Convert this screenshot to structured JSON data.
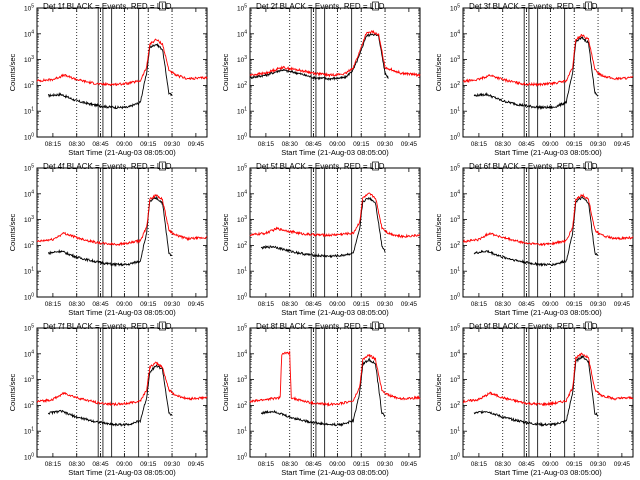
{
  "chart_data": {
    "type": "line",
    "layout": "3x3 grid",
    "shared": {
      "ylabel": "Counts/sec",
      "xlabel": "Start Time (21-Aug-03 08:05:00)",
      "x_tick_labels": [
        "08:15",
        "08:30",
        "08:45",
        "09:00",
        "09:15",
        "09:30",
        "09:45"
      ],
      "x_tick_minutes": [
        15,
        30,
        45,
        60,
        75,
        90,
        105
      ],
      "xlim_minutes": [
        5,
        112
      ],
      "y_scale": "log",
      "ylim": [
        1,
        100000
      ],
      "y_tick_labels": [
        "10^0",
        "10^1",
        "10^2",
        "10^3",
        "10^4",
        "10^5"
      ],
      "y_tick_exponents": [
        "0",
        "1",
        "2",
        "3",
        "4",
        "5"
      ],
      "dotted_vlines_minutes": [
        30,
        45,
        60,
        75,
        90
      ],
      "solid_vlines_minutes": [
        43.5,
        46.5,
        52,
        69
      ],
      "flag_box_minute": 84,
      "series_colors": {
        "Events": "#000000",
        "LLD": "#ff0000"
      }
    },
    "panels": [
      {
        "title": "Det 1f BLACK = Events, RED = LLD",
        "series": [
          {
            "name": "Events",
            "color": "#000000",
            "x": [
              12,
              20,
              30,
              40,
              48,
              55,
              62,
              70,
              74,
              76,
              80,
              84,
              88,
              90
            ],
            "y": [
              40,
              45,
              25,
              18,
              15,
              14,
              14,
              22,
              300,
              3000,
              4000,
              2500,
              50,
              40
            ]
          },
          {
            "name": "LLD",
            "color": "#ff0000",
            "x": [
              5,
              15,
              22,
              30,
              38,
              45,
              55,
              62,
              70,
              74,
              76,
              80,
              84,
              88,
              92,
              100,
              112
            ],
            "y": [
              150,
              170,
              250,
              170,
              130,
              110,
              110,
              120,
              150,
              500,
              4000,
              6000,
              4000,
              400,
              250,
              180,
              200
            ]
          }
        ]
      },
      {
        "title": "Det 2f BLACK = Events, RED = LLD",
        "series": [
          {
            "name": "Events",
            "color": "#000000",
            "x": [
              5,
              15,
              25,
              35,
              45,
              55,
              65,
              70,
              74,
              78,
              82,
              86,
              90,
              92
            ],
            "y": [
              200,
              250,
              400,
              300,
              200,
              180,
              200,
              400,
              1500,
              8000,
              10000,
              8000,
              300,
              200
            ]
          },
          {
            "name": "LLD",
            "color": "#ff0000",
            "x": [
              5,
              15,
              25,
              35,
              45,
              55,
              65,
              70,
              74,
              78,
              82,
              86,
              90,
              100,
              112
            ],
            "y": [
              250,
              300,
              500,
              400,
              300,
              250,
              280,
              500,
              2000,
              10000,
              12000,
              9000,
              500,
              300,
              250
            ]
          }
        ]
      },
      {
        "title": "Det 3f BLACK = Events, RED = LLD",
        "series": [
          {
            "name": "Events",
            "color": "#000000",
            "x": [
              12,
              20,
              30,
              40,
              48,
              55,
              62,
              70,
              74,
              76,
              80,
              84,
              88,
              90
            ],
            "y": [
              40,
              45,
              25,
              18,
              15,
              14,
              14,
              22,
              300,
              5000,
              7000,
              4500,
              50,
              40
            ]
          },
          {
            "name": "LLD",
            "color": "#ff0000",
            "x": [
              5,
              15,
              22,
              30,
              38,
              45,
              55,
              62,
              70,
              74,
              76,
              80,
              84,
              88,
              92,
              100,
              112
            ],
            "y": [
              140,
              170,
              250,
              170,
              130,
              110,
              110,
              120,
              150,
              500,
              6000,
              9000,
              6000,
              400,
              250,
              180,
              200
            ]
          }
        ]
      },
      {
        "title": "Det 4f BLACK = Events, RED = LLD",
        "series": [
          {
            "name": "Events",
            "color": "#000000",
            "x": [
              12,
              20,
              30,
              40,
              48,
              55,
              62,
              70,
              74,
              76,
              80,
              84,
              88,
              90
            ],
            "y": [
              50,
              60,
              35,
              25,
              20,
              18,
              18,
              25,
              300,
              5000,
              7000,
              4500,
              50,
              40
            ]
          },
          {
            "name": "LLD",
            "color": "#ff0000",
            "x": [
              5,
              15,
              22,
              30,
              38,
              45,
              55,
              62,
              70,
              74,
              76,
              80,
              84,
              88,
              92,
              100,
              112
            ],
            "y": [
              140,
              170,
              300,
              200,
              150,
              120,
              110,
              120,
              150,
              500,
              6000,
              9000,
              6000,
              400,
              250,
              180,
              200
            ]
          }
        ]
      },
      {
        "title": "Det 5f BLACK = Events, RED = LLD",
        "series": [
          {
            "name": "Events",
            "color": "#000000",
            "x": [
              12,
              20,
              30,
              40,
              48,
              55,
              62,
              70,
              74,
              76,
              80,
              84,
              88,
              90
            ],
            "y": [
              80,
              90,
              60,
              45,
              40,
              38,
              40,
              50,
              400,
              5000,
              7000,
              4500,
              100,
              60
            ]
          },
          {
            "name": "LLD",
            "color": "#ff0000",
            "x": [
              5,
              15,
              22,
              30,
              38,
              45,
              55,
              62,
              70,
              74,
              76,
              80,
              84,
              88,
              92,
              100,
              112
            ],
            "y": [
              250,
              300,
              450,
              350,
              280,
              260,
              250,
              270,
              300,
              800,
              7000,
              10000,
              7000,
              500,
              300,
              220,
              250
            ]
          }
        ]
      },
      {
        "title": "Det 6f BLACK = Events, RED = LLD",
        "series": [
          {
            "name": "Events",
            "color": "#000000",
            "x": [
              12,
              20,
              30,
              40,
              48,
              55,
              62,
              70,
              74,
              76,
              80,
              84,
              88,
              90
            ],
            "y": [
              50,
              60,
              35,
              25,
              20,
              18,
              18,
              25,
              300,
              5000,
              7000,
              4500,
              50,
              40
            ]
          },
          {
            "name": "LLD",
            "color": "#ff0000",
            "x": [
              5,
              15,
              22,
              30,
              38,
              45,
              55,
              62,
              70,
              74,
              76,
              80,
              84,
              88,
              92,
              100,
              112
            ],
            "y": [
              140,
              170,
              300,
              200,
              150,
              120,
              110,
              120,
              150,
              500,
              6000,
              9000,
              6000,
              400,
              250,
              180,
              200
            ]
          }
        ]
      },
      {
        "title": "Det 7f BLACK = Events, RED = LLD",
        "series": [
          {
            "name": "Events",
            "color": "#000000",
            "x": [
              12,
              20,
              30,
              40,
              48,
              55,
              62,
              70,
              74,
              76,
              80,
              84,
              88,
              90
            ],
            "y": [
              50,
              60,
              35,
              25,
              20,
              18,
              18,
              25,
              200,
              2000,
              3500,
              2500,
              50,
              40
            ]
          },
          {
            "name": "LLD",
            "color": "#ff0000",
            "x": [
              5,
              15,
              22,
              30,
              38,
              45,
              55,
              62,
              70,
              74,
              76,
              80,
              84,
              88,
              92,
              100,
              112
            ],
            "y": [
              140,
              170,
              300,
              200,
              150,
              120,
              110,
              120,
              150,
              400,
              3000,
              4500,
              3000,
              400,
              250,
              180,
              200
            ]
          }
        ]
      },
      {
        "title": "Det 8f BLACK = Events, RED = LLD",
        "series": [
          {
            "name": "Events",
            "color": "#000000",
            "x": [
              12,
              20,
              30,
              40,
              48,
              55,
              62,
              70,
              74,
              76,
              80,
              84,
              88,
              90
            ],
            "y": [
              50,
              60,
              35,
              25,
              20,
              18,
              18,
              25,
              300,
              4000,
              6000,
              4000,
              50,
              40
            ]
          },
          {
            "name": "LLD",
            "color": "#ff0000",
            "x": [
              5,
              15,
              24,
              25,
              30,
              31,
              38,
              45,
              55,
              62,
              70,
              74,
              76,
              80,
              84,
              88,
              92,
              100,
              112
            ],
            "y": [
              140,
              170,
              200,
              10000,
              11000,
              200,
              150,
              120,
              110,
              120,
              150,
              500,
              6000,
              9000,
              6000,
              400,
              250,
              180,
              200
            ]
          }
        ]
      },
      {
        "title": "Det 9f BLACK = Events, RED = LLD",
        "series": [
          {
            "name": "Events",
            "color": "#000000",
            "x": [
              12,
              20,
              30,
              40,
              48,
              55,
              62,
              70,
              74,
              76,
              80,
              84,
              88,
              90
            ],
            "y": [
              50,
              60,
              35,
              25,
              20,
              18,
              18,
              25,
              300,
              5000,
              8000,
              5000,
              50,
              40
            ]
          },
          {
            "name": "LLD",
            "color": "#ff0000",
            "x": [
              5,
              15,
              22,
              30,
              38,
              45,
              55,
              62,
              70,
              74,
              76,
              80,
              84,
              88,
              92,
              100,
              112
            ],
            "y": [
              140,
              170,
              300,
              200,
              150,
              120,
              110,
              120,
              150,
              500,
              7000,
              10000,
              7000,
              400,
              250,
              180,
              200
            ]
          }
        ]
      }
    ]
  }
}
